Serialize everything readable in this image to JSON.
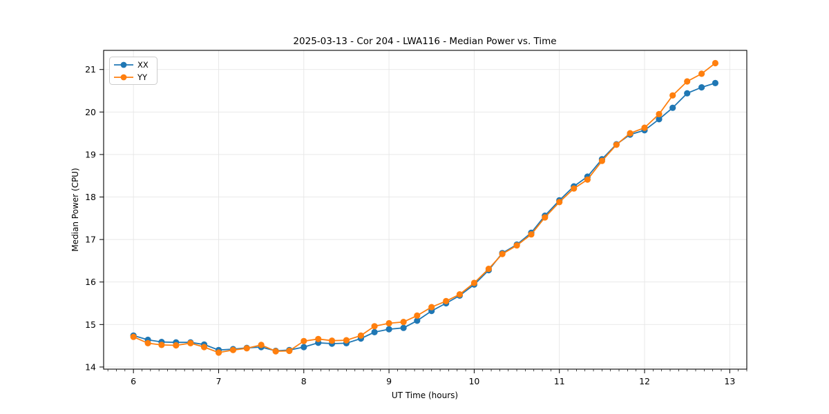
{
  "title": "2025-03-13 - Cor 204 - LWA116 - Median Power vs. Time",
  "colors": {
    "series_xx": "#1f77b4",
    "series_yy": "#ff7f0e",
    "grid": "#e6e6e6",
    "spine": "#000000",
    "legend_border": "#cccccc"
  },
  "chart_data": {
    "type": "line",
    "title": "2025-03-13 - Cor 204 - LWA116 - Median Power vs. Time",
    "xlabel": "UT Time (hours)",
    "ylabel": "Median Power (CPU)",
    "grid": true,
    "legend_position": "upper-left",
    "xlim": [
      5.65,
      13.2
    ],
    "ylim": [
      13.95,
      21.45
    ],
    "xticks": [
      6,
      7,
      8,
      9,
      10,
      11,
      12,
      13
    ],
    "yticks": [
      14,
      15,
      16,
      17,
      18,
      19,
      20,
      21
    ],
    "x_minor_step": 0.1,
    "x": [
      6.0,
      6.17,
      6.33,
      6.5,
      6.67,
      6.83,
      7.0,
      7.17,
      7.33,
      7.5,
      7.67,
      7.83,
      8.0,
      8.17,
      8.33,
      8.5,
      8.67,
      8.83,
      9.0,
      9.17,
      9.33,
      9.5,
      9.67,
      9.83,
      10.0,
      10.17,
      10.33,
      10.5,
      10.67,
      10.83,
      11.0,
      11.17,
      11.33,
      11.5,
      11.67,
      11.83,
      12.0,
      12.17,
      12.33,
      12.5,
      12.67,
      12.83
    ],
    "series": [
      {
        "name": "XX",
        "color": "#1f77b4",
        "values": [
          14.74,
          14.64,
          14.59,
          14.58,
          14.58,
          14.53,
          14.4,
          14.42,
          14.45,
          14.47,
          14.38,
          14.4,
          14.47,
          14.57,
          14.55,
          14.56,
          14.67,
          14.82,
          14.89,
          14.92,
          15.09,
          15.32,
          15.5,
          15.68,
          15.94,
          16.28,
          16.68,
          16.88,
          17.16,
          17.56,
          17.92,
          18.25,
          18.48,
          18.89,
          19.24,
          19.47,
          19.57,
          19.83,
          20.1,
          20.44,
          20.58,
          20.68
        ]
      },
      {
        "name": "YY",
        "color": "#ff7f0e",
        "values": [
          14.71,
          14.56,
          14.52,
          14.51,
          14.56,
          14.47,
          14.34,
          14.4,
          14.44,
          14.52,
          14.37,
          14.38,
          14.61,
          14.66,
          14.62,
          14.63,
          14.74,
          14.96,
          15.03,
          15.06,
          15.21,
          15.41,
          15.55,
          15.71,
          15.98,
          16.31,
          16.66,
          16.86,
          17.12,
          17.52,
          17.88,
          18.2,
          18.41,
          18.85,
          19.23,
          19.5,
          19.63,
          19.95,
          20.39,
          20.72,
          20.9,
          21.15
        ]
      }
    ]
  }
}
